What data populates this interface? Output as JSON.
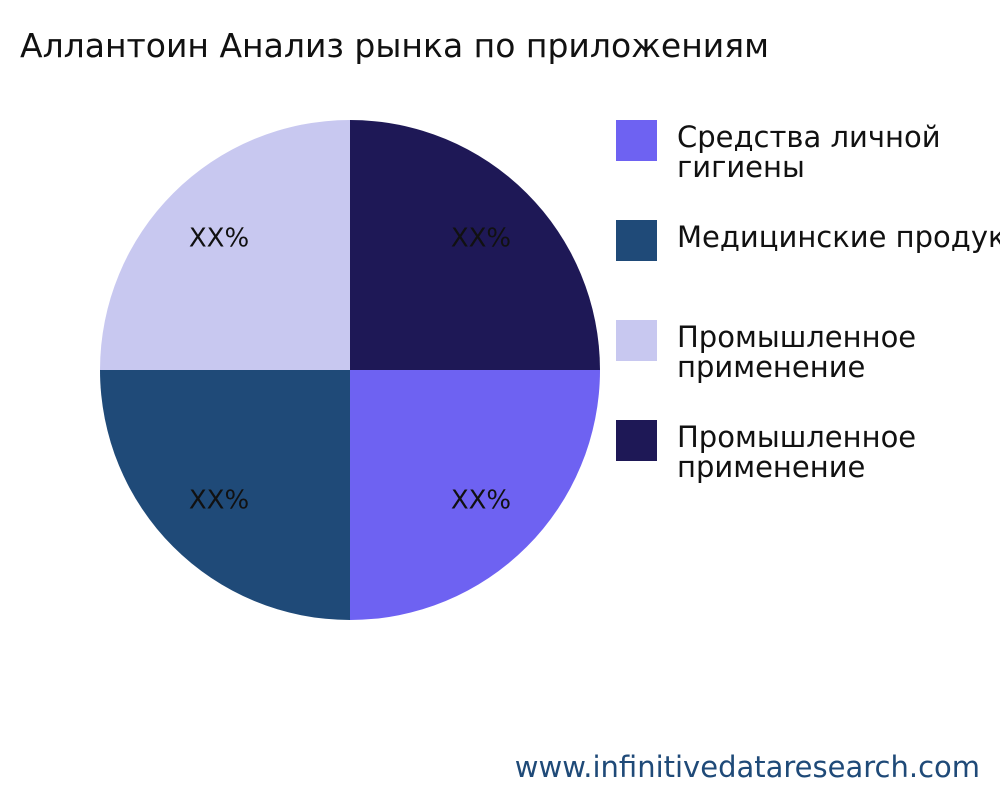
{
  "chart_data": {
    "type": "pie",
    "title": "Аллантоин Анализ рынка по приложениям",
    "series": [
      {
        "name": "Средства личной\nгигиены",
        "color": "#6e62f2",
        "values": [
          25
        ],
        "value_labels": [
          "XX%"
        ]
      },
      {
        "name": "Медицинские продукты",
        "color": "#1f4a78",
        "values": [
          25
        ],
        "value_labels": [
          "XX%"
        ]
      },
      {
        "name": "Промышленное\nприменение",
        "color": "#c8c8f0",
        "values": [
          25
        ],
        "value_labels": [
          "XX%"
        ]
      },
      {
        "name": "Промышленное\nприменение",
        "color": "#1e1856",
        "values": [
          25
        ],
        "value_labels": [
          "XX%"
        ]
      }
    ],
    "footer": "www.infinitivedataresearch.com"
  }
}
